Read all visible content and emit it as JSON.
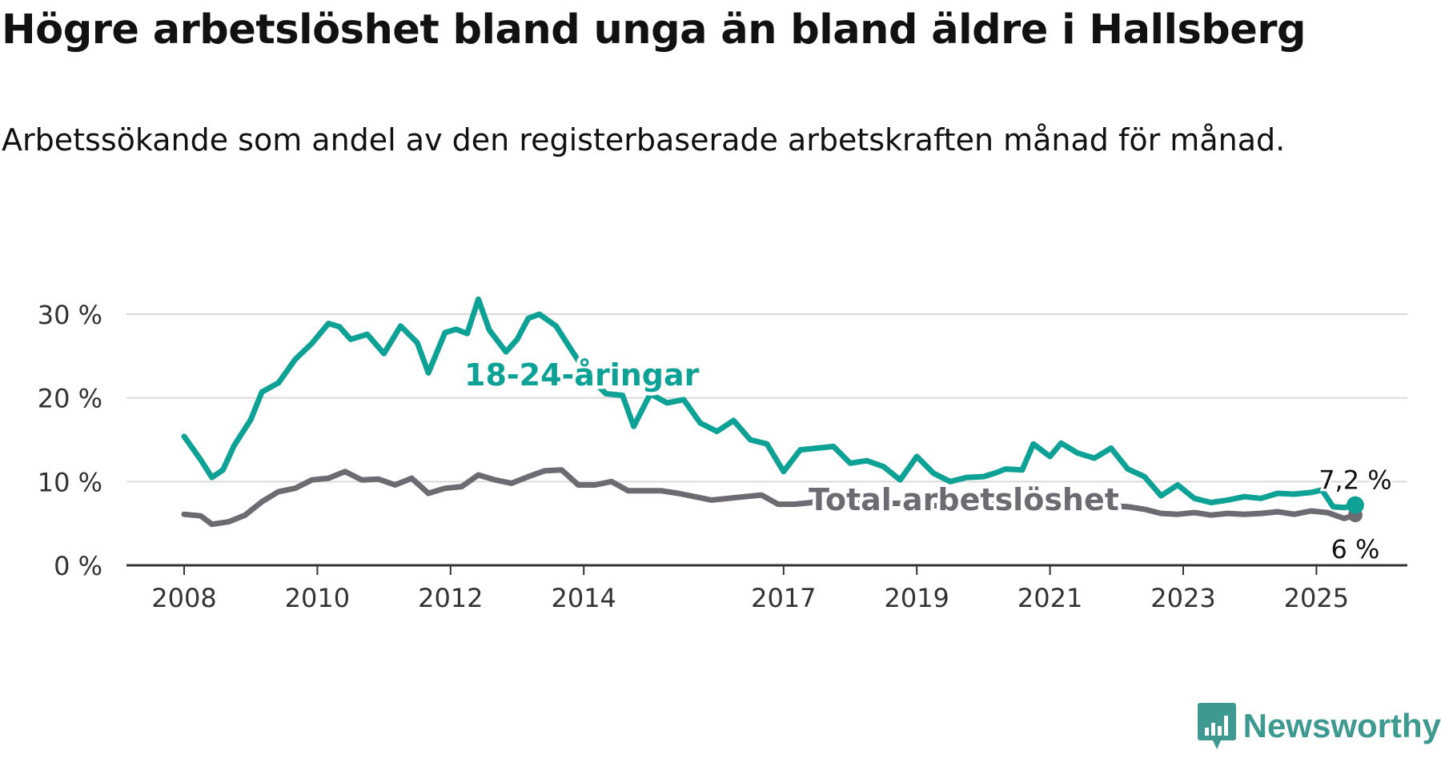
{
  "title": "Högre arbetslöshet bland unga än bland äldre i Hallsberg",
  "subtitle": "Arbetssökande som andel av den registerbaserade arbetskraften månad för månad.",
  "brand": "Newsworthy",
  "chart_data": {
    "type": "line",
    "ylim": [
      0,
      30
    ],
    "y_ticks": [
      0,
      10,
      20,
      30
    ],
    "y_tick_labels": [
      "0 %",
      "10 %",
      "20 %",
      "30 %"
    ],
    "x_ticks": [
      2008,
      2010,
      2012,
      2014,
      2017,
      2019,
      2021,
      2023,
      2025
    ],
    "x_tick_labels": [
      "2008",
      "2010",
      "2012",
      "2014",
      "2017",
      "2019",
      "2021",
      "2023",
      "2025"
    ],
    "grid": true,
    "series": [
      {
        "name": "18-24-åringar",
        "color": "#0ea195",
        "last_value_label": "7,2 %",
        "points": [
          [
            "2008-01",
            15.4
          ],
          [
            "2008-04",
            12.6
          ],
          [
            "2008-06",
            10.5
          ],
          [
            "2008-08",
            11.4
          ],
          [
            "2008-10",
            14.3
          ],
          [
            "2009-01",
            17.4
          ],
          [
            "2009-03",
            20.7
          ],
          [
            "2009-06",
            21.8
          ],
          [
            "2009-09",
            24.6
          ],
          [
            "2009-12",
            26.5
          ],
          [
            "2010-03",
            28.9
          ],
          [
            "2010-05",
            28.5
          ],
          [
            "2010-07",
            27.0
          ],
          [
            "2010-10",
            27.6
          ],
          [
            "2011-01",
            25.3
          ],
          [
            "2011-04",
            28.6
          ],
          [
            "2011-07",
            26.6
          ],
          [
            "2011-09",
            23.0
          ],
          [
            "2011-12",
            27.8
          ],
          [
            "2012-02",
            28.2
          ],
          [
            "2012-04",
            27.7
          ],
          [
            "2012-06",
            31.8
          ],
          [
            "2012-08",
            28.1
          ],
          [
            "2012-11",
            25.5
          ],
          [
            "2013-01",
            27.0
          ],
          [
            "2013-03",
            29.5
          ],
          [
            "2013-05",
            30.0
          ],
          [
            "2013-08",
            28.6
          ],
          [
            "2013-11",
            25.5
          ],
          [
            "2014-02",
            22.5
          ],
          [
            "2014-05",
            20.5
          ],
          [
            "2014-08",
            20.3
          ],
          [
            "2014-10",
            16.6
          ],
          [
            "2015-01",
            20.5
          ],
          [
            "2015-04",
            19.4
          ],
          [
            "2015-07",
            19.8
          ],
          [
            "2015-10",
            17.0
          ],
          [
            "2016-01",
            16.0
          ],
          [
            "2016-04",
            17.3
          ],
          [
            "2016-07",
            15.0
          ],
          [
            "2016-10",
            14.5
          ],
          [
            "2017-01",
            11.2
          ],
          [
            "2017-04",
            13.8
          ],
          [
            "2017-07",
            14.0
          ],
          [
            "2017-10",
            14.2
          ],
          [
            "2018-01",
            12.2
          ],
          [
            "2018-04",
            12.5
          ],
          [
            "2018-07",
            11.8
          ],
          [
            "2018-10",
            10.2
          ],
          [
            "2019-01",
            13.0
          ],
          [
            "2019-04",
            11.0
          ],
          [
            "2019-07",
            10.0
          ],
          [
            "2019-10",
            10.5
          ],
          [
            "2020-01",
            10.6
          ],
          [
            "2020-03",
            11.0
          ],
          [
            "2020-05",
            11.5
          ],
          [
            "2020-08",
            11.4
          ],
          [
            "2020-10",
            14.5
          ],
          [
            "2021-01",
            13.0
          ],
          [
            "2021-03",
            14.6
          ],
          [
            "2021-06",
            13.4
          ],
          [
            "2021-09",
            12.8
          ],
          [
            "2021-12",
            14.0
          ],
          [
            "2022-03",
            11.5
          ],
          [
            "2022-06",
            10.6
          ],
          [
            "2022-09",
            8.3
          ],
          [
            "2022-12",
            9.6
          ],
          [
            "2023-03",
            8.0
          ],
          [
            "2023-06",
            7.5
          ],
          [
            "2023-09",
            7.8
          ],
          [
            "2023-12",
            8.2
          ],
          [
            "2024-03",
            8.0
          ],
          [
            "2024-06",
            8.6
          ],
          [
            "2024-09",
            8.5
          ],
          [
            "2024-12",
            8.7
          ],
          [
            "2025-02",
            9.0
          ],
          [
            "2025-04",
            7.0
          ],
          [
            "2025-06",
            6.9
          ],
          [
            "2025-08",
            7.2
          ]
        ]
      },
      {
        "name": "Total arbetslöshet",
        "color": "#6d6a72",
        "last_value_label": "6 %",
        "points": [
          [
            "2008-01",
            6.1
          ],
          [
            "2008-04",
            5.9
          ],
          [
            "2008-06",
            4.9
          ],
          [
            "2008-09",
            5.2
          ],
          [
            "2008-12",
            6.0
          ],
          [
            "2009-03",
            7.6
          ],
          [
            "2009-06",
            8.8
          ],
          [
            "2009-09",
            9.2
          ],
          [
            "2009-12",
            10.2
          ],
          [
            "2010-03",
            10.4
          ],
          [
            "2010-06",
            11.2
          ],
          [
            "2010-09",
            10.2
          ],
          [
            "2010-12",
            10.3
          ],
          [
            "2011-03",
            9.6
          ],
          [
            "2011-06",
            10.4
          ],
          [
            "2011-09",
            8.6
          ],
          [
            "2011-12",
            9.2
          ],
          [
            "2012-03",
            9.4
          ],
          [
            "2012-06",
            10.8
          ],
          [
            "2012-09",
            10.2
          ],
          [
            "2012-12",
            9.8
          ],
          [
            "2013-03",
            10.6
          ],
          [
            "2013-06",
            11.3
          ],
          [
            "2013-09",
            11.4
          ],
          [
            "2013-12",
            9.6
          ],
          [
            "2014-03",
            9.6
          ],
          [
            "2014-06",
            10.0
          ],
          [
            "2014-09",
            8.9
          ],
          [
            "2014-12",
            8.9
          ],
          [
            "2015-03",
            8.9
          ],
          [
            "2015-06",
            8.6
          ],
          [
            "2015-09",
            8.2
          ],
          [
            "2015-12",
            7.8
          ],
          [
            "2016-03",
            8.0
          ],
          [
            "2016-06",
            8.2
          ],
          [
            "2016-09",
            8.4
          ],
          [
            "2016-12",
            7.3
          ],
          [
            "2017-03",
            7.3
          ],
          [
            "2017-06",
            7.5
          ],
          [
            "2017-09",
            8.3
          ],
          [
            "2017-12",
            7.8
          ],
          [
            "2018-06",
            7.4
          ],
          [
            "2018-12",
            7.4
          ],
          [
            "2019-06",
            7.0
          ],
          [
            "2019-12",
            7.1
          ],
          [
            "2020-06",
            7.4
          ],
          [
            "2020-12",
            7.3
          ],
          [
            "2021-06",
            7.4
          ],
          [
            "2021-12",
            7.1
          ],
          [
            "2022-03",
            7.0
          ],
          [
            "2022-06",
            6.7
          ],
          [
            "2022-09",
            6.2
          ],
          [
            "2022-12",
            6.1
          ],
          [
            "2023-03",
            6.3
          ],
          [
            "2023-06",
            6.0
          ],
          [
            "2023-09",
            6.2
          ],
          [
            "2023-12",
            6.1
          ],
          [
            "2024-03",
            6.2
          ],
          [
            "2024-06",
            6.4
          ],
          [
            "2024-09",
            6.1
          ],
          [
            "2024-12",
            6.5
          ],
          [
            "2025-03",
            6.3
          ],
          [
            "2025-06",
            5.6
          ],
          [
            "2025-08",
            6.0
          ]
        ]
      }
    ]
  }
}
